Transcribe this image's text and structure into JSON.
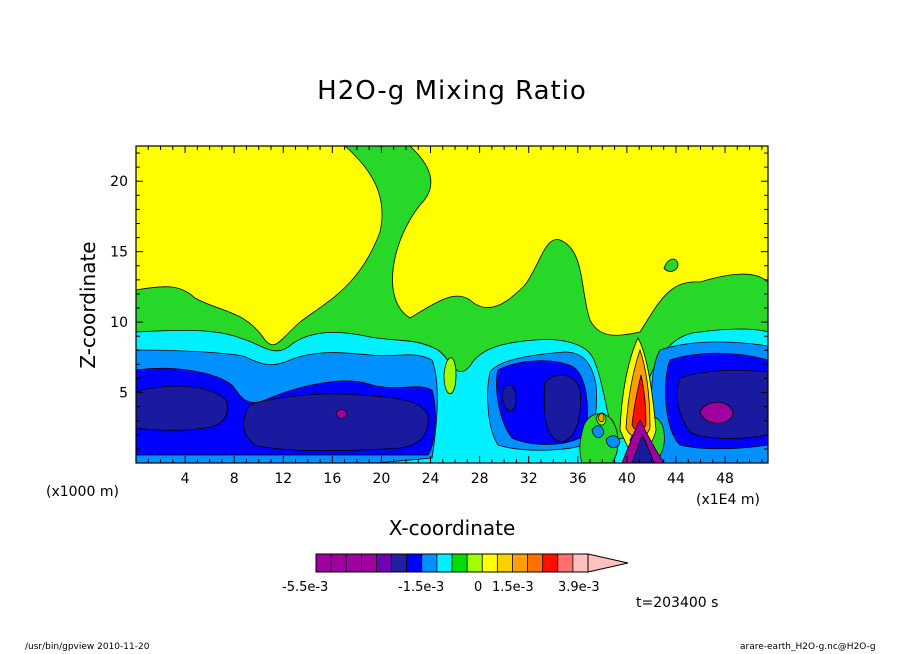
{
  "chart_data": {
    "type": "contour",
    "title": "H2O-g Mixing Ratio",
    "xlabel": "X-coordinate",
    "ylabel": "Z-coordinate",
    "x_unit": "(x1000 m)",
    "x_scale_note": "(x1E4 m)",
    "x_ticks": [
      "4",
      "8",
      "12",
      "16",
      "20",
      "24",
      "28",
      "32",
      "36",
      "40",
      "44",
      "48"
    ],
    "y_ticks": [
      "5",
      "10",
      "15",
      "20"
    ],
    "xlim": [
      0,
      51.5
    ],
    "ylim": [
      0,
      22.5
    ],
    "colorbar": {
      "labels": [
        "-5.5e-3",
        "-1.5e-3",
        "0",
        "1.5e-3",
        "3.9e-3"
      ],
      "colors": [
        "#a000a0",
        "#a000a0",
        "#a000a0",
        "#a000a0",
        "#7000b0",
        "#2020a0",
        "#0000ff",
        "#0090ff",
        "#00f0ff",
        "#00dd00",
        "#a0ff00",
        "#ffff00",
        "#ffd000",
        "#ffa000",
        "#ff7000",
        "#ff1000",
        "#ff7070",
        "#ffc0c0"
      ]
    },
    "field_colors": {
      "purple": "#a000a0",
      "navy": "#1a1aa0",
      "blue": "#0000ff",
      "light_blue": "#0090ff",
      "cyan": "#00f0ff",
      "green": "#28d828",
      "lime": "#a0ff00",
      "yellow": "#ffff00",
      "orange": "#ffa000",
      "red": "#ff1000"
    }
  },
  "annotations": {
    "time": "t=203400 s",
    "footer_left": "/usr/bin/gpview   2010-11-20",
    "footer_right": "arare-earth_H2O-g.nc@H2O-g"
  }
}
